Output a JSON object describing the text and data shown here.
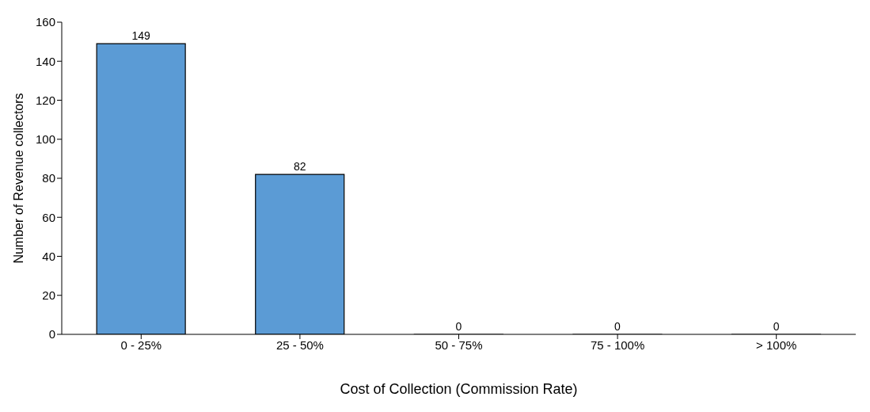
{
  "chart_data": {
    "type": "bar",
    "xlabel": "Cost of Collection (Commission Rate)",
    "ylabel": "Number of Revenue collectors",
    "categories": [
      "0 - 25%",
      "25 - 50%",
      "50 - 75%",
      "75 - 100%",
      "> 100%"
    ],
    "values": [
      149,
      82,
      0,
      0,
      0
    ],
    "color": "#5b9bd5",
    "ylim": [
      0,
      160
    ],
    "yticks": [
      0,
      20,
      40,
      60,
      80,
      100,
      120,
      140,
      160
    ],
    "grid": false,
    "data_labels": true
  }
}
